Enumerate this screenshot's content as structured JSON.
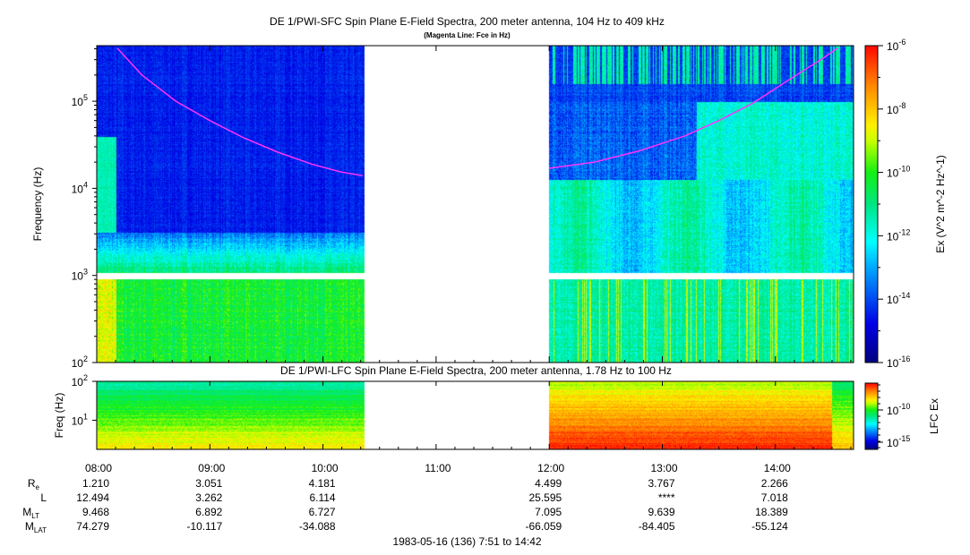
{
  "chart_data": [
    {
      "type": "heatmap",
      "title": "DE 1/PWI-SFC  Spin Plane E-Field Spectra, 200 meter antenna, 104 Hz to 409 kHz",
      "subtitle": "(Magenta Line: Fce in Hz)",
      "ylabel": "Frequency (Hz)",
      "yscale": "log",
      "ylim": [
        100,
        409000
      ],
      "yticks": [
        "10^2",
        "10^3",
        "10^4",
        "10^5"
      ],
      "data_gap": [
        "10:22",
        "12:00"
      ],
      "colorbar": {
        "label": "Ex (V^2 m^-2 Hz^-1)",
        "range": [
          1e-16,
          1e-06
        ],
        "ticks": [
          "10^-6",
          "10^-8",
          "10^-10",
          "10^-12",
          "10^-14",
          "10^-16"
        ]
      },
      "fce_line": {
        "color": "#ff33ff",
        "segments": [
          [
            [
              8.18,
              409000
            ],
            [
              8.4,
              200000
            ],
            [
              8.7,
              100000
            ],
            [
              9.0,
              60000
            ],
            [
              9.3,
              38000
            ],
            [
              9.6,
              26000
            ],
            [
              9.9,
              19000
            ],
            [
              10.15,
              15500
            ],
            [
              10.35,
              14000
            ]
          ],
          [
            [
              12.0,
              17000
            ],
            [
              12.4,
              20000
            ],
            [
              12.8,
              27000
            ],
            [
              13.2,
              40000
            ],
            [
              13.5,
              60000
            ],
            [
              13.8,
              95000
            ],
            [
              14.1,
              170000
            ],
            [
              14.4,
              300000
            ],
            [
              14.55,
              409000
            ]
          ]
        ]
      }
    },
    {
      "type": "heatmap",
      "title": "DE 1/PWI-LFC  Spin Plane E-Field Spectra, 200 meter antenna, 1.78 Hz to 100 Hz",
      "ylabel": "Freq (Hz)",
      "yscale": "log",
      "ylim": [
        1.78,
        100
      ],
      "yticks": [
        "10^1",
        "10^2"
      ],
      "data_gap": [
        "10:22",
        "12:00"
      ],
      "colorbar": {
        "label": "LFC Ex",
        "ticks": [
          "10^-10",
          "10^-15"
        ]
      }
    }
  ],
  "x_axis": {
    "ticks": [
      "08:00",
      "09:00",
      "10:00",
      "11:00",
      "12:00",
      "13:00",
      "14:00"
    ],
    "range_hours": [
      8.0,
      14.7
    ],
    "caption": "1983-05-16 (136) 7:51 to 14:42"
  },
  "ephemeris": {
    "rows": [
      {
        "label": "R",
        "sub": "e",
        "values": [
          "1.210",
          "3.051",
          "4.181",
          "",
          "4.499",
          "3.767",
          "2.266"
        ]
      },
      {
        "label": "L",
        "sub": "",
        "values": [
          "12.494",
          "3.262",
          "6.114",
          "",
          "25.595",
          "****",
          "7.018"
        ]
      },
      {
        "label": "M",
        "sub": "LT",
        "values": [
          "9.468",
          "6.892",
          "6.727",
          "",
          "7.095",
          "9.639",
          "18.389"
        ]
      },
      {
        "label": "M",
        "sub": "LAT",
        "values": [
          "74.279",
          "-10.117",
          "-34.088",
          "",
          "-66.059",
          "-84.405",
          "-55.124"
        ]
      }
    ]
  }
}
